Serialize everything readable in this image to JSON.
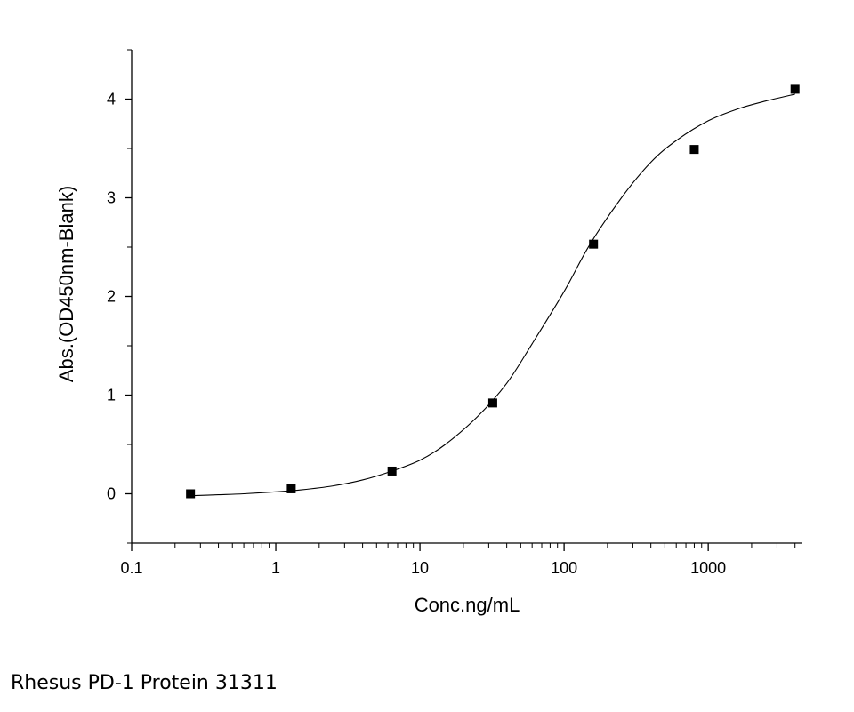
{
  "chart_data": {
    "type": "scatter",
    "x_scale": "log",
    "xlabel": "Conc.ng/mL",
    "ylabel": "Abs.(OD450nm-Blank)",
    "xlim": [
      0.1,
      4500
    ],
    "ylim": [
      -0.5,
      4.5
    ],
    "x_ticks": [
      0.1,
      1,
      10,
      100,
      1000
    ],
    "x_tick_labels": [
      "0.1",
      "1",
      "10",
      "100",
      "1000"
    ],
    "y_ticks": [
      0,
      1,
      2,
      3,
      4
    ],
    "y_tick_labels": [
      "0",
      "1",
      "2",
      "3",
      "4"
    ],
    "grid": false,
    "series": [
      {
        "type": "scatter",
        "x": [
          0.256,
          1.28,
          6.4,
          32,
          160,
          800,
          4000
        ],
        "y": [
          0.0,
          0.05,
          0.23,
          0.92,
          2.53,
          3.49,
          4.1
        ]
      },
      {
        "type": "line",
        "x": [
          0.256,
          0.4,
          0.6,
          1,
          1.5,
          2.5,
          4,
          6.4,
          10,
          15,
          25,
          40,
          60,
          100,
          150,
          250,
          400,
          600,
          1000,
          1600,
          2500,
          4000
        ],
        "y": [
          -0.02,
          -0.01,
          0.0,
          0.02,
          0.04,
          0.08,
          0.14,
          0.23,
          0.34,
          0.5,
          0.78,
          1.12,
          1.52,
          2.05,
          2.52,
          3.0,
          3.36,
          3.58,
          3.78,
          3.9,
          3.98,
          4.05
        ]
      }
    ]
  },
  "caption": "Rhesus PD-1 Protein 31311"
}
